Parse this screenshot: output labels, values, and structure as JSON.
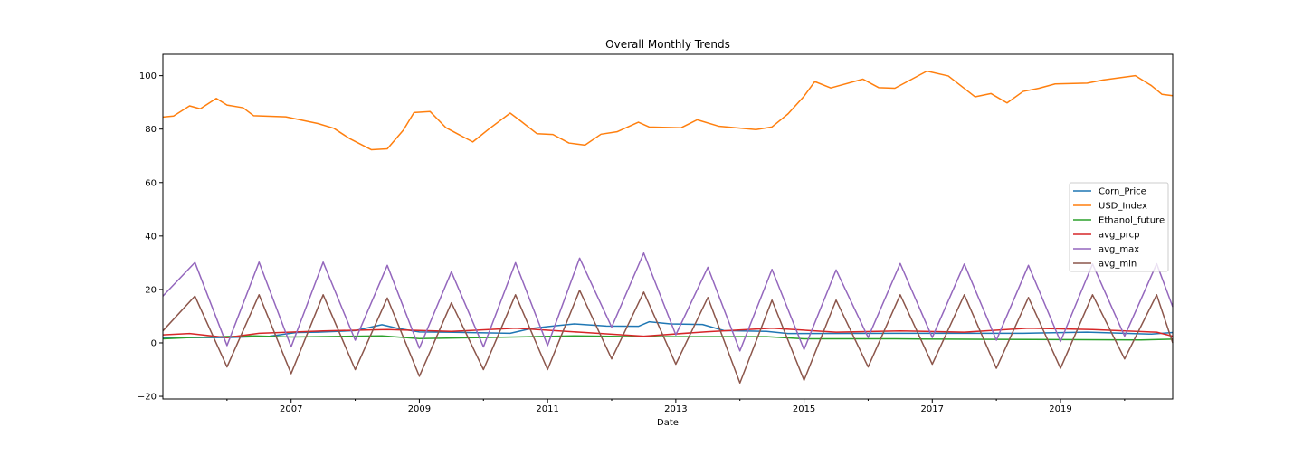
{
  "chart_data": {
    "type": "line",
    "title": "Overall Monthly Trends",
    "xlabel": "Date",
    "ylabel": "",
    "xlim": [
      "2005-01",
      "2020-10"
    ],
    "ylim": [
      -21,
      108
    ],
    "x_ticks": [
      "2007",
      "2009",
      "2011",
      "2013",
      "2015",
      "2017",
      "2019"
    ],
    "y_ticks": [
      -20,
      0,
      20,
      40,
      60,
      80,
      100
    ],
    "y_tick_labels": [
      "−20",
      "0",
      "20",
      "40",
      "60",
      "80",
      "100"
    ],
    "grid": false,
    "legend_position": "center-right",
    "x_start": "2005-01",
    "x_step": "1 month",
    "series": [
      {
        "name": "Corn_Price",
        "color": "#1f77b4",
        "points": [
          [
            "2005-01",
            2.0
          ],
          [
            "2006-01",
            2.0
          ],
          [
            "2006-09",
            2.5
          ],
          [
            "2007-02",
            3.9
          ],
          [
            "2007-06",
            4.0
          ],
          [
            "2008-01",
            4.6
          ],
          [
            "2008-06",
            6.8
          ],
          [
            "2008-09",
            5.4
          ],
          [
            "2009-01",
            4.1
          ],
          [
            "2009-06",
            4.0
          ],
          [
            "2010-06",
            3.6
          ],
          [
            "2010-10",
            5.4
          ],
          [
            "2011-01",
            6.1
          ],
          [
            "2011-06",
            7.1
          ],
          [
            "2011-12",
            6.3
          ],
          [
            "2012-06",
            6.2
          ],
          [
            "2012-08",
            7.9
          ],
          [
            "2012-12",
            7.1
          ],
          [
            "2013-06",
            6.9
          ],
          [
            "2013-10",
            4.6
          ],
          [
            "2014-06",
            4.3
          ],
          [
            "2014-10",
            3.5
          ],
          [
            "2016-06",
            3.6
          ],
          [
            "2017-06",
            3.6
          ],
          [
            "2018-06",
            3.6
          ],
          [
            "2019-06",
            4.0
          ],
          [
            "2020-06",
            3.3
          ],
          [
            "2020-10",
            3.9
          ]
        ]
      },
      {
        "name": "USD_Index",
        "color": "#ff7f0e",
        "points": [
          [
            "2005-01",
            84.5
          ],
          [
            "2005-03",
            84.9
          ],
          [
            "2005-06",
            88.7
          ],
          [
            "2005-08",
            87.6
          ],
          [
            "2005-11",
            91.5
          ],
          [
            "2006-01",
            89.0
          ],
          [
            "2006-04",
            88.0
          ],
          [
            "2006-06",
            85.0
          ],
          [
            "2006-12",
            84.6
          ],
          [
            "2007-06",
            82.1
          ],
          [
            "2007-09",
            80.3
          ],
          [
            "2007-12",
            76.4
          ],
          [
            "2008-04",
            72.3
          ],
          [
            "2008-07",
            72.6
          ],
          [
            "2008-10",
            79.6
          ],
          [
            "2008-12",
            86.2
          ],
          [
            "2009-03",
            86.6
          ],
          [
            "2009-06",
            80.5
          ],
          [
            "2009-11",
            75.2
          ],
          [
            "2010-02",
            80.0
          ],
          [
            "2010-06",
            86.0
          ],
          [
            "2010-08",
            83.0
          ],
          [
            "2010-11",
            78.3
          ],
          [
            "2011-02",
            78.0
          ],
          [
            "2011-05",
            74.8
          ],
          [
            "2011-08",
            74.0
          ],
          [
            "2011-11",
            78.1
          ],
          [
            "2012-02",
            79.0
          ],
          [
            "2012-06",
            82.6
          ],
          [
            "2012-08",
            80.8
          ],
          [
            "2013-02",
            80.5
          ],
          [
            "2013-05",
            83.5
          ],
          [
            "2013-09",
            81.1
          ],
          [
            "2014-04",
            79.8
          ],
          [
            "2014-07",
            80.8
          ],
          [
            "2014-10",
            85.7
          ],
          [
            "2015-01",
            92.3
          ],
          [
            "2015-03",
            97.8
          ],
          [
            "2015-06",
            95.4
          ],
          [
            "2015-12",
            98.7
          ],
          [
            "2016-03",
            95.5
          ],
          [
            "2016-06",
            95.3
          ],
          [
            "2016-12",
            101.7
          ],
          [
            "2017-04",
            99.9
          ],
          [
            "2017-09",
            92.1
          ],
          [
            "2017-12",
            93.3
          ],
          [
            "2018-03",
            89.8
          ],
          [
            "2018-06",
            94.1
          ],
          [
            "2018-09",
            95.3
          ],
          [
            "2018-12",
            96.9
          ],
          [
            "2019-06",
            97.2
          ],
          [
            "2019-09",
            98.4
          ],
          [
            "2020-03",
            100.0
          ],
          [
            "2020-06",
            96.3
          ],
          [
            "2020-08",
            93.0
          ],
          [
            "2020-10",
            92.5
          ]
        ]
      },
      {
        "name": "Ethanol_future",
        "color": "#2ca02c",
        "points": [
          [
            "2005-01",
            1.5
          ],
          [
            "2005-06",
            2.0
          ],
          [
            "2006-06",
            2.6
          ],
          [
            "2007-01",
            2.2
          ],
          [
            "2008-06",
            2.6
          ],
          [
            "2009-01",
            1.6
          ],
          [
            "2010-01",
            2.0
          ],
          [
            "2011-06",
            2.6
          ],
          [
            "2012-06",
            2.3
          ],
          [
            "2013-01",
            2.3
          ],
          [
            "2014-06",
            2.3
          ],
          [
            "2015-01",
            1.5
          ],
          [
            "2016-06",
            1.5
          ],
          [
            "2018-01",
            1.3
          ],
          [
            "2020-04",
            1.1
          ],
          [
            "2020-10",
            1.4
          ]
        ]
      },
      {
        "name": "avg_prcp",
        "color": "#d62728",
        "points": [
          [
            "2005-01",
            3.0
          ],
          [
            "2005-06",
            3.5
          ],
          [
            "2006-01",
            2.0
          ],
          [
            "2006-07",
            3.6
          ],
          [
            "2007-07",
            4.5
          ],
          [
            "2008-07",
            5.0
          ],
          [
            "2009-07",
            4.3
          ],
          [
            "2010-07",
            5.5
          ],
          [
            "2011-07",
            4.0
          ],
          [
            "2012-07",
            2.5
          ],
          [
            "2013-07",
            4.2
          ],
          [
            "2014-07",
            5.5
          ],
          [
            "2015-07",
            4.0
          ],
          [
            "2016-07",
            4.5
          ],
          [
            "2017-07",
            4.0
          ],
          [
            "2018-07",
            5.5
          ],
          [
            "2019-07",
            5.0
          ],
          [
            "2020-07",
            4.0
          ],
          [
            "2020-10",
            2.5
          ]
        ]
      },
      {
        "name": "avg_max",
        "color": "#9467bd",
        "points": [
          [
            "2005-01",
            17.5
          ],
          [
            "2005-07",
            30.1
          ],
          [
            "2006-01",
            -1.0
          ],
          [
            "2006-07",
            30.2
          ],
          [
            "2007-01",
            -1.5
          ],
          [
            "2007-07",
            30.2
          ],
          [
            "2008-01",
            1.0
          ],
          [
            "2008-07",
            29.0
          ],
          [
            "2009-01",
            -2.0
          ],
          [
            "2009-07",
            26.6
          ],
          [
            "2010-01",
            -1.5
          ],
          [
            "2010-07",
            30.0
          ],
          [
            "2011-01",
            -1.0
          ],
          [
            "2011-07",
            31.7
          ],
          [
            "2012-01",
            5.9
          ],
          [
            "2012-07",
            33.6
          ],
          [
            "2013-01",
            3.0
          ],
          [
            "2013-07",
            28.3
          ],
          [
            "2014-01",
            -3.0
          ],
          [
            "2014-07",
            27.5
          ],
          [
            "2015-01",
            -2.5
          ],
          [
            "2015-07",
            27.3
          ],
          [
            "2016-01",
            2.0
          ],
          [
            "2016-07",
            29.7
          ],
          [
            "2017-01",
            2.0
          ],
          [
            "2017-07",
            29.5
          ],
          [
            "2018-01",
            1.0
          ],
          [
            "2018-07",
            29.0
          ],
          [
            "2019-01",
            0.5
          ],
          [
            "2019-07",
            29.5
          ],
          [
            "2020-01",
            2.5
          ],
          [
            "2020-07",
            29.6
          ],
          [
            "2020-10",
            13.5
          ]
        ]
      },
      {
        "name": "avg_min",
        "color": "#8c564b",
        "points": [
          [
            "2005-01",
            4.5
          ],
          [
            "2005-07",
            17.5
          ],
          [
            "2006-01",
            -9.0
          ],
          [
            "2006-07",
            18.0
          ],
          [
            "2007-01",
            -11.5
          ],
          [
            "2007-07",
            18.0
          ],
          [
            "2008-01",
            -10.0
          ],
          [
            "2008-07",
            16.8
          ],
          [
            "2009-01",
            -12.5
          ],
          [
            "2009-07",
            15.0
          ],
          [
            "2010-01",
            -10.0
          ],
          [
            "2010-07",
            18.0
          ],
          [
            "2011-01",
            -10.0
          ],
          [
            "2011-07",
            19.7
          ],
          [
            "2012-01",
            -6.0
          ],
          [
            "2012-07",
            19.0
          ],
          [
            "2013-01",
            -8.0
          ],
          [
            "2013-07",
            17.0
          ],
          [
            "2014-01",
            -15.0
          ],
          [
            "2014-07",
            16.0
          ],
          [
            "2015-01",
            -14.0
          ],
          [
            "2015-07",
            16.0
          ],
          [
            "2016-01",
            -9.0
          ],
          [
            "2016-07",
            18.0
          ],
          [
            "2017-01",
            -8.0
          ],
          [
            "2017-07",
            18.0
          ],
          [
            "2018-01",
            -9.5
          ],
          [
            "2018-07",
            17.0
          ],
          [
            "2019-01",
            -9.5
          ],
          [
            "2019-07",
            18.0
          ],
          [
            "2020-01",
            -6.0
          ],
          [
            "2020-07",
            18.0
          ],
          [
            "2020-10",
            0.0
          ]
        ]
      }
    ]
  }
}
